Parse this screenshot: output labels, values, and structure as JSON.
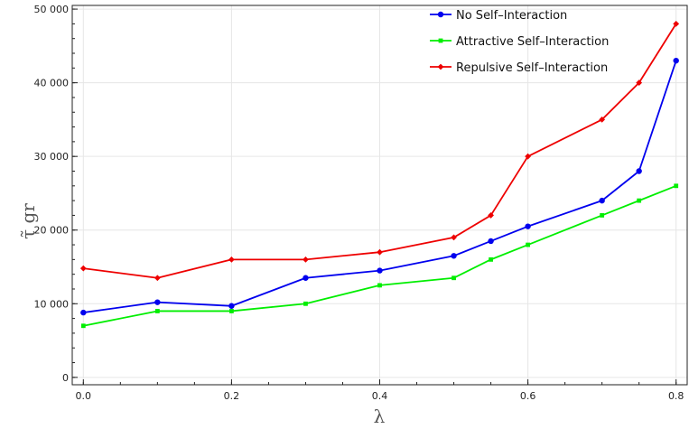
{
  "chart_data": {
    "type": "line",
    "x": [
      0.0,
      0.1,
      0.2,
      0.3,
      0.4,
      0.5,
      0.55,
      0.6,
      0.7,
      0.75,
      0.8
    ],
    "series": [
      {
        "name": "No Self–Interaction",
        "color": "#0000ee",
        "marker": "circle",
        "values": [
          8800,
          10200,
          9700,
          13500,
          14500,
          16500,
          18500,
          20500,
          24000,
          28000,
          43000
        ]
      },
      {
        "name": "Attractive Self–Interaction",
        "color": "#00ee00",
        "marker": "square",
        "values": [
          7000,
          9000,
          9000,
          10000,
          12500,
          13500,
          16000,
          18000,
          22000,
          24000,
          26000
        ]
      },
      {
        "name": "Repulsive Self–Interaction",
        "color": "#ee0000",
        "marker": "diamond",
        "values": [
          14800,
          13500,
          16000,
          16000,
          17000,
          19000,
          22000,
          30000,
          35000,
          40000,
          48000
        ]
      }
    ],
    "xlabel": "λ",
    "ylabel": "τ̃ gr",
    "xlim": [
      -0.015,
      0.815
    ],
    "ylim": [
      -1000,
      50500
    ],
    "xticks": [
      "0.0",
      "0.2",
      "0.4",
      "0.6",
      "0.8"
    ],
    "yticks": [
      "0",
      "10 000",
      "20 000",
      "30 000",
      "40 000",
      "50 000"
    ],
    "grid": true,
    "legend_position": "top-right"
  }
}
